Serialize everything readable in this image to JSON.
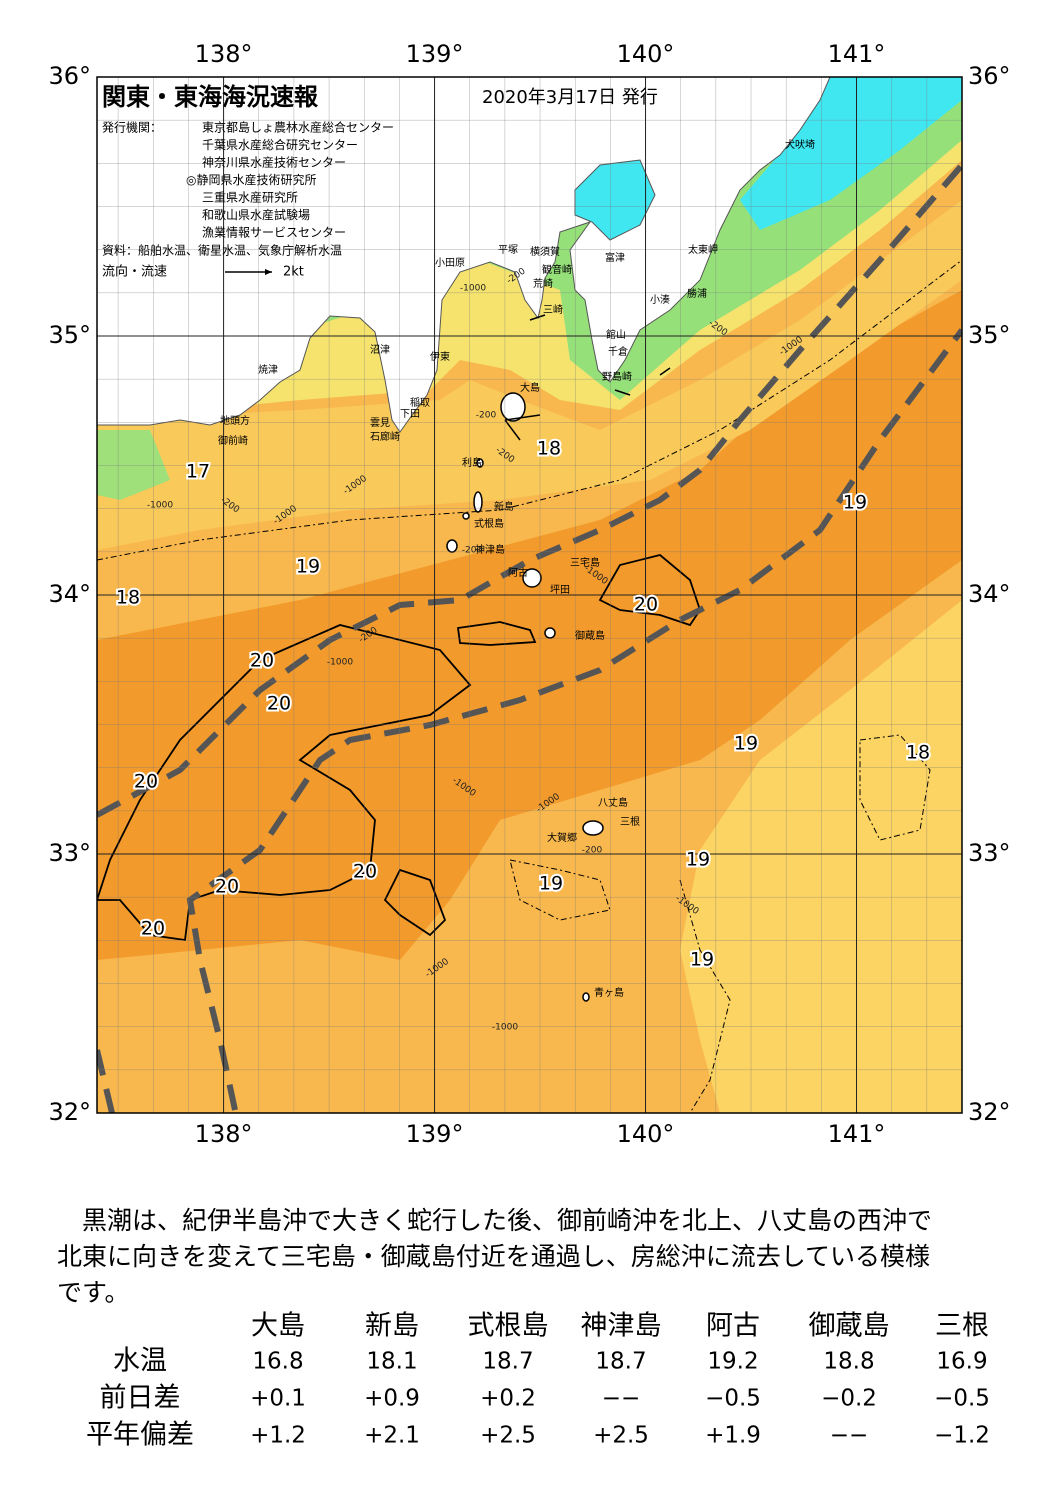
{
  "header": {
    "title": "関東・東海海況速報",
    "date": "2020年3月17日 発行",
    "issuer_label": "発行機関：",
    "issuers": [
      "東京都島しょ農林水産総合センター",
      "千葉県水産総合研究センター",
      "神奈川県水産技術センター",
      "◎静岡県水産技術研究所",
      "三重県水産研究所",
      "和歌山県水産試験場",
      "漁業情報サービスセンター"
    ],
    "source": "資料：船舶水温、衛星水温、気象庁解析水温",
    "flow_label": "流向・流速",
    "flow_scale": "2kt"
  },
  "map": {
    "lonlim": [
      137.4,
      141.5
    ],
    "latlim": [
      32,
      36
    ],
    "lon_ticks": [
      {
        "value": 138,
        "label": "138°"
      },
      {
        "value": 139,
        "label": "139°"
      },
      {
        "value": 140,
        "label": "140°"
      },
      {
        "value": 141,
        "label": "141°"
      }
    ],
    "lat_ticks": [
      {
        "value": 32,
        "label": "32°"
      },
      {
        "value": 33,
        "label": "33°"
      },
      {
        "value": 34,
        "label": "34°"
      },
      {
        "value": 35,
        "label": "35°"
      },
      {
        "value": 36,
        "label": "36°"
      }
    ],
    "place_names": [
      "犬吠埼",
      "太東岬",
      "勝浦",
      "小湊",
      "富津",
      "横須賀",
      "観音崎",
      "平塚",
      "荒崎",
      "三崎",
      "小田原",
      "館山",
      "千倉",
      "野島崎",
      "沼津",
      "伊東",
      "焼津",
      "稲取",
      "下田",
      "雲見",
      "石廊崎",
      "地頭方",
      "御前崎",
      "大島",
      "利島",
      "新島",
      "式根島",
      "神津島",
      "三宅島",
      "阿古",
      "坪田",
      "御蔵島",
      "八丈島",
      "三根",
      "大賀郷",
      "青ヶ島"
    ],
    "temperature_labels": [
      18,
      17,
      19,
      19,
      18,
      20,
      20,
      20,
      19,
      18,
      20,
      19,
      20,
      19,
      20,
      20,
      19
    ],
    "depth_labels": [
      "-200",
      "-1000",
      "-200",
      "-1000",
      "-200",
      "-200",
      "-1000",
      "-1000",
      "-200",
      "-1000",
      "-200",
      "-1000",
      "-200",
      "-1000",
      "-1000",
      "-1000",
      "-200",
      "-1000",
      "-1000",
      "-1000"
    ]
  },
  "text": [
    "黒潮は、紀伊半島沖で大きく蛇行した後、御前崎沖を北上、八丈島の西沖で",
    "北東に向きを変えて三宅島・御蔵島付近を通過し、房総沖に流去している模様",
    "です。"
  ],
  "table": {
    "columns": [
      "大島",
      "新島",
      "式根島",
      "神津島",
      "阿古",
      "御蔵島",
      "三根"
    ],
    "rows": [
      {
        "label": "水温",
        "cells": [
          "16.8",
          "18.1",
          "18.7",
          "18.7",
          "19.2",
          "18.8",
          "16.9"
        ]
      },
      {
        "label": "前日差",
        "cells": [
          "+0.1",
          "+0.9",
          "+0.2",
          "−−",
          "−0.5",
          "−0.2",
          "−0.5"
        ]
      },
      {
        "label": "平年偏差",
        "cells": [
          "+1.2",
          "+2.1",
          "+2.5",
          "+2.5",
          "+1.9",
          "−−",
          "−1.2"
        ]
      }
    ]
  }
}
